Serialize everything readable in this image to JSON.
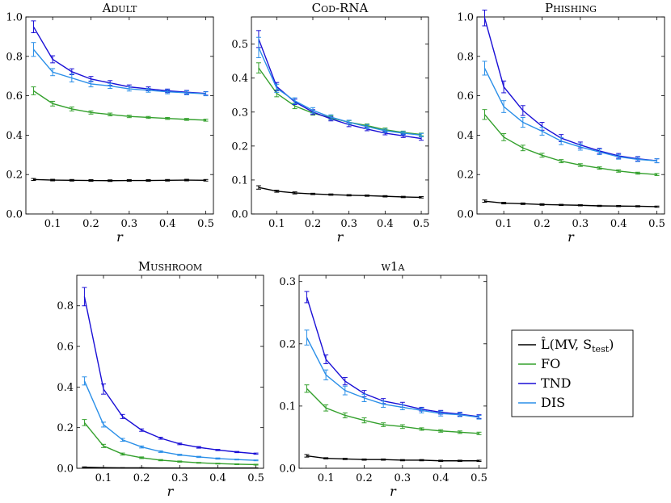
{
  "legend": {
    "entries": [
      {
        "key": "mv",
        "label": "L̂(MV, S_test)",
        "color": "#000000"
      },
      {
        "key": "fo",
        "label": "FO",
        "color": "#33a02c"
      },
      {
        "key": "tnd",
        "label": "TND",
        "color": "#1a0fd6"
      },
      {
        "key": "dis",
        "label": "DIS",
        "color": "#2a8fe8"
      }
    ]
  },
  "chart_data": [
    {
      "type": "line",
      "title": "Adult",
      "xlabel": "r",
      "xlim": [
        0.03,
        0.52
      ],
      "ylim": [
        0,
        1.0
      ],
      "xticks": [
        0.1,
        0.2,
        0.3,
        0.4,
        0.5
      ],
      "yticks": [
        0,
        0.2,
        0.4,
        0.6,
        0.8,
        1.0
      ],
      "ytick_labels": [
        "0.0",
        "0.2",
        "0.4",
        "0.6",
        "0.8",
        "1.0"
      ],
      "x": [
        0.05,
        0.1,
        0.15,
        0.2,
        0.25,
        0.3,
        0.35,
        0.4,
        0.45,
        0.5
      ],
      "series": [
        {
          "key": "mv",
          "name": "L̂(MV, S_test)",
          "color": "#000000",
          "values": [
            0.175,
            0.172,
            0.171,
            0.17,
            0.169,
            0.17,
            0.17,
            0.171,
            0.172,
            0.171
          ],
          "err": [
            0.005,
            0.004,
            0.004,
            0.004,
            0.004,
            0.004,
            0.004,
            0.004,
            0.004,
            0.004
          ]
        },
        {
          "key": "fo",
          "name": "FO",
          "color": "#33a02c",
          "values": [
            0.625,
            0.56,
            0.533,
            0.515,
            0.505,
            0.495,
            0.49,
            0.485,
            0.48,
            0.476
          ],
          "err": [
            0.02,
            0.012,
            0.01,
            0.008,
            0.007,
            0.006,
            0.005,
            0.005,
            0.005,
            0.005
          ]
        },
        {
          "key": "tnd",
          "name": "TND",
          "color": "#1a0fd6",
          "values": [
            0.95,
            0.785,
            0.722,
            0.685,
            0.665,
            0.645,
            0.635,
            0.625,
            0.618,
            0.612
          ],
          "err": [
            0.03,
            0.018,
            0.015,
            0.013,
            0.012,
            0.01,
            0.01,
            0.009,
            0.009,
            0.009
          ]
        },
        {
          "key": "dis",
          "name": "DIS",
          "color": "#2a8fe8",
          "values": [
            0.835,
            0.72,
            0.69,
            0.66,
            0.65,
            0.635,
            0.628,
            0.62,
            0.615,
            0.61
          ],
          "err": [
            0.035,
            0.018,
            0.02,
            0.015,
            0.013,
            0.011,
            0.01,
            0.01,
            0.01,
            0.01
          ]
        }
      ]
    },
    {
      "type": "line",
      "title": "Cod-RNA",
      "xlabel": "r",
      "xlim": [
        0.03,
        0.52
      ],
      "ylim": [
        0,
        0.58
      ],
      "xticks": [
        0.1,
        0.2,
        0.3,
        0.4,
        0.5
      ],
      "yticks": [
        0,
        0.1,
        0.2,
        0.3,
        0.4,
        0.5
      ],
      "ytick_labels": [
        "0.0",
        "0.1",
        "0.2",
        "0.3",
        "0.4",
        "0.5"
      ],
      "x": [
        0.05,
        0.1,
        0.15,
        0.2,
        0.25,
        0.3,
        0.35,
        0.4,
        0.45,
        0.5
      ],
      "series": [
        {
          "key": "mv",
          "name": "L̂(MV, S_test)",
          "color": "#000000",
          "values": [
            0.078,
            0.067,
            0.062,
            0.059,
            0.057,
            0.055,
            0.054,
            0.052,
            0.05,
            0.049
          ],
          "err": [
            0.005,
            0.003,
            0.003,
            0.002,
            0.002,
            0.002,
            0.002,
            0.002,
            0.002,
            0.002
          ]
        },
        {
          "key": "fo",
          "name": "FO",
          "color": "#33a02c",
          "values": [
            0.43,
            0.355,
            0.318,
            0.297,
            0.283,
            0.27,
            0.26,
            0.248,
            0.24,
            0.234
          ],
          "err": [
            0.015,
            0.01,
            0.008,
            0.006,
            0.006,
            0.005,
            0.005,
            0.005,
            0.004,
            0.004
          ]
        },
        {
          "key": "tnd",
          "name": "TND",
          "color": "#1a0fd6",
          "values": [
            0.515,
            0.375,
            0.33,
            0.3,
            0.28,
            0.263,
            0.25,
            0.238,
            0.23,
            0.222
          ],
          "err": [
            0.025,
            0.012,
            0.008,
            0.007,
            0.006,
            0.006,
            0.005,
            0.005,
            0.005,
            0.005
          ]
        },
        {
          "key": "dis",
          "name": "DIS",
          "color": "#2a8fe8",
          "values": [
            0.49,
            0.37,
            0.333,
            0.305,
            0.285,
            0.27,
            0.257,
            0.245,
            0.238,
            0.232
          ],
          "err": [
            0.03,
            0.012,
            0.009,
            0.008,
            0.007,
            0.006,
            0.006,
            0.005,
            0.005,
            0.005
          ]
        }
      ]
    },
    {
      "type": "line",
      "title": "Phishing",
      "xlabel": "r",
      "xlim": [
        0.03,
        0.52
      ],
      "ylim": [
        0,
        1.0
      ],
      "xticks": [
        0.1,
        0.2,
        0.3,
        0.4,
        0.5
      ],
      "yticks": [
        0,
        0.2,
        0.4,
        0.6,
        0.8,
        1.0
      ],
      "ytick_labels": [
        "0.0",
        "0.2",
        "0.4",
        "0.6",
        "0.8",
        "1.0"
      ],
      "x": [
        0.05,
        0.1,
        0.15,
        0.2,
        0.25,
        0.3,
        0.35,
        0.4,
        0.45,
        0.5
      ],
      "series": [
        {
          "key": "mv",
          "name": "L̂(MV, S_test)",
          "color": "#000000",
          "values": [
            0.065,
            0.055,
            0.052,
            0.048,
            0.046,
            0.044,
            0.041,
            0.04,
            0.039,
            0.037
          ],
          "err": [
            0.006,
            0.004,
            0.004,
            0.004,
            0.003,
            0.003,
            0.003,
            0.003,
            0.003,
            0.003
          ]
        },
        {
          "key": "fo",
          "name": "FO",
          "color": "#33a02c",
          "values": [
            0.505,
            0.39,
            0.335,
            0.298,
            0.268,
            0.248,
            0.233,
            0.218,
            0.207,
            0.2
          ],
          "err": [
            0.025,
            0.018,
            0.014,
            0.01,
            0.008,
            0.007,
            0.006,
            0.006,
            0.005,
            0.005
          ]
        },
        {
          "key": "tnd",
          "name": "TND",
          "color": "#1a0fd6",
          "values": [
            0.995,
            0.645,
            0.525,
            0.445,
            0.385,
            0.35,
            0.32,
            0.295,
            0.28,
            0.27
          ],
          "err": [
            0.04,
            0.03,
            0.025,
            0.02,
            0.018,
            0.015,
            0.013,
            0.012,
            0.011,
            0.01
          ]
        },
        {
          "key": "dis",
          "name": "DIS",
          "color": "#2a8fe8",
          "values": [
            0.74,
            0.545,
            0.465,
            0.42,
            0.37,
            0.34,
            0.315,
            0.29,
            0.277,
            0.27
          ],
          "err": [
            0.035,
            0.03,
            0.025,
            0.02,
            0.018,
            0.016,
            0.014,
            0.012,
            0.011,
            0.01
          ]
        }
      ]
    },
    {
      "type": "line",
      "title": "Mushroom",
      "xlabel": "r",
      "xlim": [
        0.03,
        0.52
      ],
      "ylim": [
        0,
        0.95
      ],
      "xticks": [
        0.1,
        0.2,
        0.3,
        0.4,
        0.5
      ],
      "yticks": [
        0,
        0.2,
        0.4,
        0.6,
        0.8
      ],
      "ytick_labels": [
        "0.0",
        "0.2",
        "0.4",
        "0.6",
        "0.8"
      ],
      "x": [
        0.05,
        0.1,
        0.15,
        0.2,
        0.25,
        0.3,
        0.35,
        0.4,
        0.45,
        0.5
      ],
      "series": [
        {
          "key": "mv",
          "name": "L̂(MV, S_test)",
          "color": "#000000",
          "values": [
            0.005,
            0.003,
            0.002,
            0.002,
            0.001,
            0.001,
            0.001,
            0.001,
            0.001,
            0.001
          ],
          "err": [
            0.002,
            0.001,
            0.001,
            0.001,
            0.001,
            0.001,
            0.001,
            0.001,
            0.001,
            0.001
          ]
        },
        {
          "key": "fo",
          "name": "FO",
          "color": "#33a02c",
          "values": [
            0.225,
            0.11,
            0.07,
            0.052,
            0.04,
            0.033,
            0.027,
            0.023,
            0.02,
            0.018
          ],
          "err": [
            0.015,
            0.008,
            0.005,
            0.004,
            0.003,
            0.003,
            0.002,
            0.002,
            0.002,
            0.002
          ]
        },
        {
          "key": "tnd",
          "name": "TND",
          "color": "#1a0fd6",
          "values": [
            0.845,
            0.39,
            0.255,
            0.188,
            0.148,
            0.12,
            0.103,
            0.09,
            0.08,
            0.072
          ],
          "err": [
            0.045,
            0.025,
            0.01,
            0.006,
            0.005,
            0.004,
            0.004,
            0.003,
            0.003,
            0.003
          ]
        },
        {
          "key": "dis",
          "name": "DIS",
          "color": "#2a8fe8",
          "values": [
            0.43,
            0.215,
            0.14,
            0.105,
            0.082,
            0.066,
            0.056,
            0.048,
            0.043,
            0.039
          ],
          "err": [
            0.02,
            0.012,
            0.007,
            0.005,
            0.004,
            0.003,
            0.003,
            0.003,
            0.002,
            0.002
          ]
        }
      ]
    },
    {
      "type": "line",
      "title": "w1a",
      "xlabel": "r",
      "xlim": [
        0.03,
        0.52
      ],
      "ylim": [
        0,
        0.31
      ],
      "xticks": [
        0.1,
        0.2,
        0.3,
        0.4,
        0.5
      ],
      "yticks": [
        0,
        0.1,
        0.2,
        0.3
      ],
      "ytick_labels": [
        "0.0",
        "0.1",
        "0.2",
        "0.3"
      ],
      "x": [
        0.05,
        0.1,
        0.15,
        0.2,
        0.25,
        0.3,
        0.35,
        0.4,
        0.45,
        0.5
      ],
      "series": [
        {
          "key": "mv",
          "name": "L̂(MV, S_test)",
          "color": "#000000",
          "values": [
            0.02,
            0.016,
            0.015,
            0.014,
            0.014,
            0.013,
            0.013,
            0.012,
            0.012,
            0.012
          ],
          "err": [
            0.002,
            0.001,
            0.001,
            0.001,
            0.001,
            0.001,
            0.001,
            0.001,
            0.001,
            0.001
          ]
        },
        {
          "key": "fo",
          "name": "FO",
          "color": "#33a02c",
          "values": [
            0.128,
            0.097,
            0.085,
            0.077,
            0.07,
            0.067,
            0.063,
            0.06,
            0.058,
            0.056
          ],
          "err": [
            0.006,
            0.005,
            0.004,
            0.004,
            0.003,
            0.003,
            0.002,
            0.002,
            0.002,
            0.002
          ]
        },
        {
          "key": "tnd",
          "name": "TND",
          "color": "#1a0fd6",
          "values": [
            0.275,
            0.175,
            0.14,
            0.12,
            0.108,
            0.102,
            0.095,
            0.09,
            0.087,
            0.083
          ],
          "err": [
            0.009,
            0.007,
            0.006,
            0.005,
            0.004,
            0.004,
            0.003,
            0.003,
            0.003,
            0.003
          ]
        },
        {
          "key": "dis",
          "name": "DIS",
          "color": "#2a8fe8",
          "values": [
            0.21,
            0.15,
            0.125,
            0.113,
            0.103,
            0.098,
            0.093,
            0.088,
            0.086,
            0.082
          ],
          "err": [
            0.012,
            0.008,
            0.007,
            0.006,
            0.005,
            0.004,
            0.004,
            0.004,
            0.003,
            0.003
          ]
        }
      ]
    }
  ]
}
